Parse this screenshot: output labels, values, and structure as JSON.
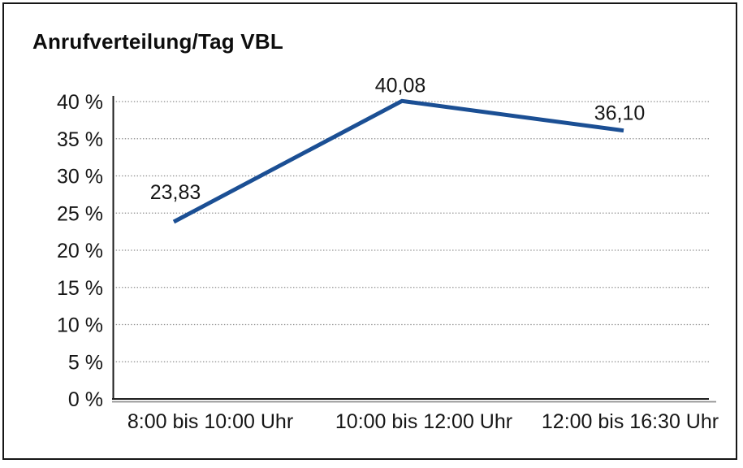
{
  "page": {
    "title": "Anrufverteilung/Tag VBL"
  },
  "colors": {
    "series_line": "#1b4f94",
    "text": "#161616",
    "gridline": "#8c8c8c",
    "frame_border": "#161616"
  },
  "chart_data": {
    "type": "line",
    "title": "Anrufverteilung/Tag VBL",
    "categories": [
      "8:00 bis 10:00 Uhr",
      "10:00 bis 12:00 Uhr",
      "12:00 bis 16:30 Uhr"
    ],
    "values": [
      23.83,
      40.08,
      36.1
    ],
    "data_labels": [
      "23,83",
      "40,08",
      "36,10"
    ],
    "xlabel": "",
    "ylabel": "",
    "ylim": [
      0,
      40
    ],
    "ytick_step": 5,
    "ytick_labels": [
      "0 %",
      "5 %",
      "10 %",
      "15 %",
      "20 %",
      "25 %",
      "30 %",
      "35 %",
      "40 %"
    ],
    "grid": "horizontal-dotted",
    "legend": "none",
    "line_color": "#1b4f94"
  }
}
